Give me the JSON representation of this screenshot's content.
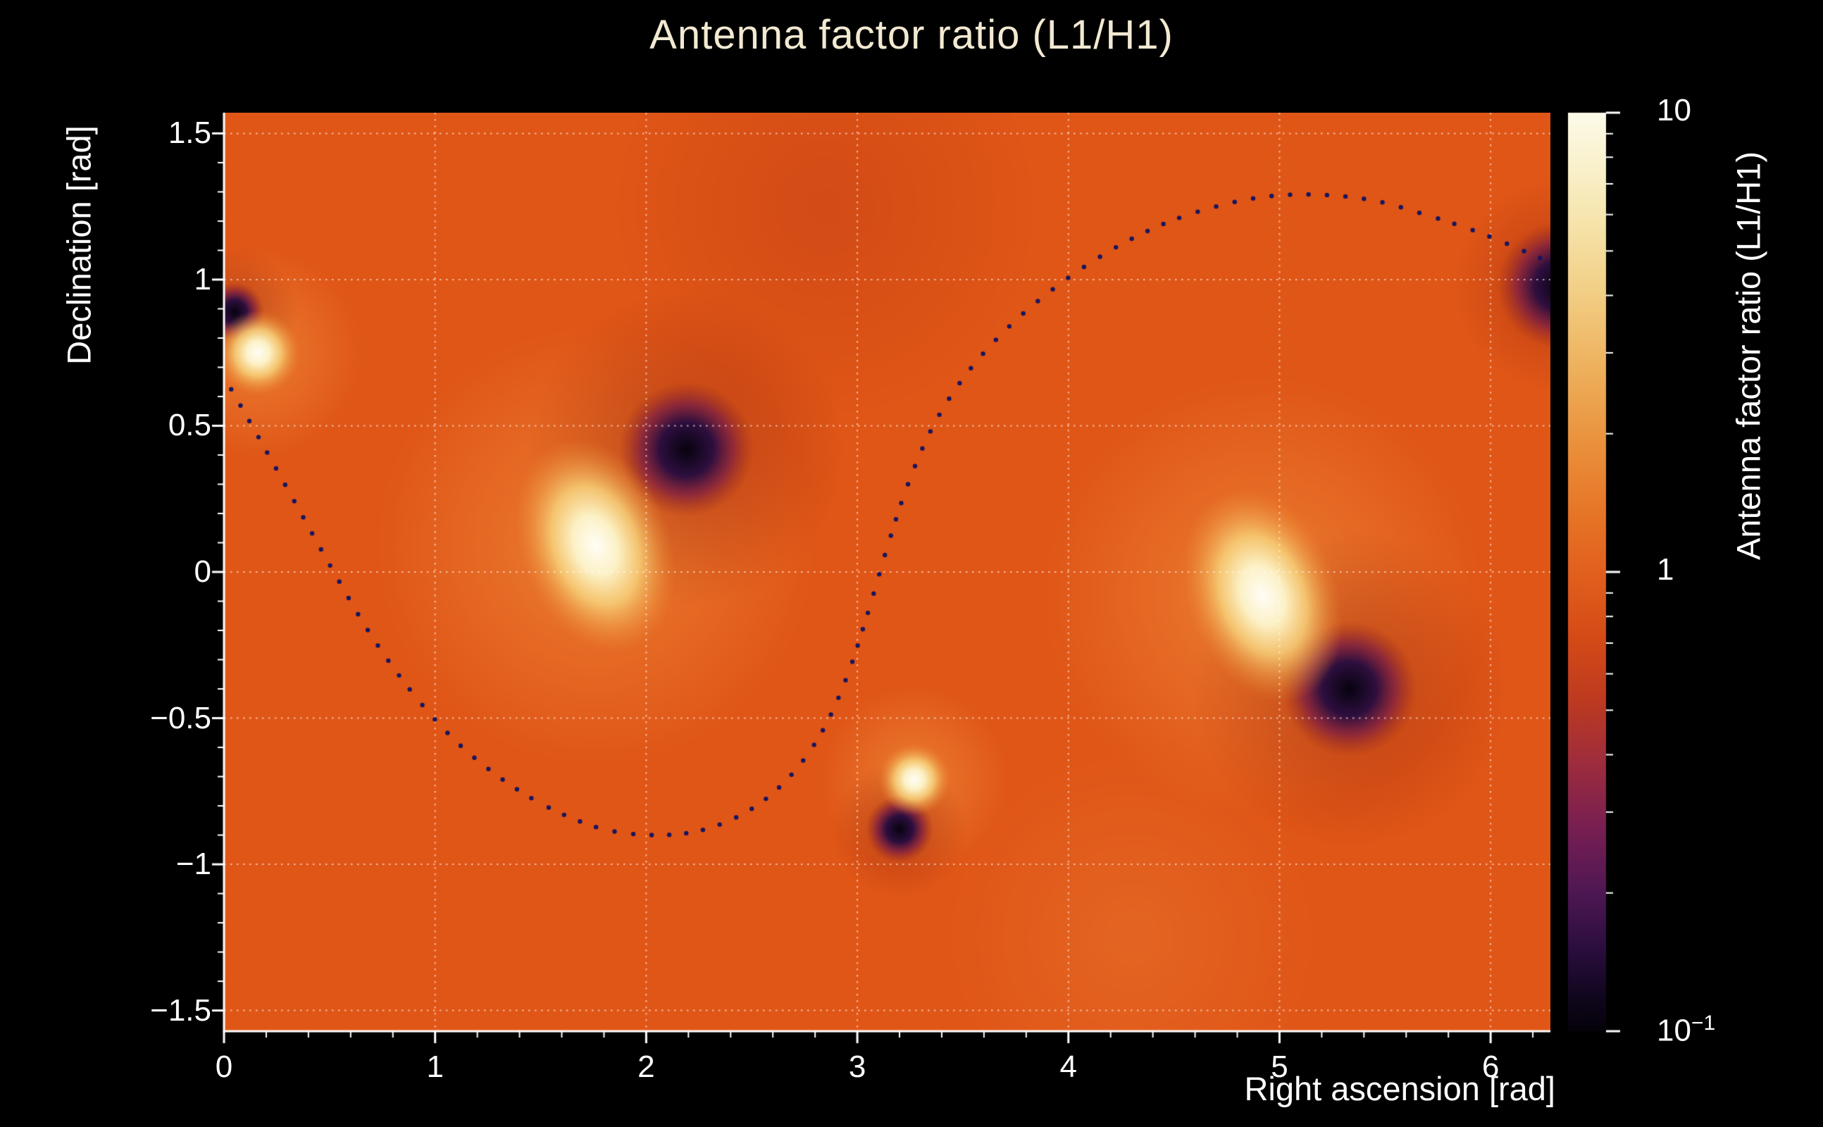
{
  "page": {
    "background": "#000000"
  },
  "chart_data": {
    "type": "heatmap",
    "title": "Antenna factor ratio (L1/H1)",
    "xlabel": "Right ascension [rad]",
    "ylabel": "Declination [rad]",
    "colorbar_label": "Antenna factor ratio (L1/H1)",
    "x_range": [
      0,
      6.2832
    ],
    "y_range": [
      -1.5708,
      1.5708
    ],
    "z_range": [
      0.1,
      10
    ],
    "z_scale": "log",
    "grid": true,
    "x_ticks": [
      {
        "v": 0,
        "label": "0"
      },
      {
        "v": 1,
        "label": "1"
      },
      {
        "v": 2,
        "label": "2"
      },
      {
        "v": 3,
        "label": "3"
      },
      {
        "v": 4,
        "label": "4"
      },
      {
        "v": 5,
        "label": "5"
      },
      {
        "v": 6,
        "label": "6"
      }
    ],
    "x_minor_step": 0.2,
    "y_ticks": [
      {
        "v": 1.5,
        "label": "1.5"
      },
      {
        "v": 1,
        "label": "1"
      },
      {
        "v": 0.5,
        "label": "0.5"
      },
      {
        "v": 0,
        "label": "0"
      },
      {
        "v": -0.5,
        "label": "−0.5"
      },
      {
        "v": -1,
        "label": "−1"
      },
      {
        "v": -1.5,
        "label": "−1.5"
      }
    ],
    "y_minor_step": 0.1,
    "grid_lines": {
      "x": [
        1,
        2,
        3,
        4,
        5,
        6
      ],
      "y": [
        -1.5,
        -1,
        -0.5,
        0,
        0.5,
        1,
        1.5
      ]
    },
    "base_value": 0.9,
    "features": {
      "maxima": [
        {
          "ra": 1.76,
          "dec": 0.09,
          "peak": 10,
          "core_r": 0.125,
          "halo_r": 0.42,
          "glow_r": 1.05,
          "sx": 0.85,
          "sy": 1.25,
          "rot": -20
        },
        {
          "ra": 4.92,
          "dec": -0.08,
          "peak": 10,
          "core_r": 0.125,
          "halo_r": 0.42,
          "glow_r": 1.05,
          "sx": 0.85,
          "sy": 1.25,
          "rot": -20
        },
        {
          "ra": 3.27,
          "dec": -0.71,
          "peak": 6,
          "core_r": 0.05,
          "halo_r": 0.17,
          "glow_r": 0.45,
          "sx": 1,
          "sy": 1,
          "rot": 0
        },
        {
          "ra": 0.16,
          "dec": 0.75,
          "peak": 6,
          "core_r": 0.06,
          "halo_r": 0.2,
          "glow_r": 0.5,
          "sx": 1,
          "sy": 1,
          "rot": 0
        }
      ],
      "minima": [
        {
          "ra": 2.19,
          "dec": 0.42,
          "peak": 0.1,
          "core_r": 0.1,
          "halo_r": 0.32,
          "shade_r": 0.75
        },
        {
          "ra": 5.33,
          "dec": -0.4,
          "peak": 0.1,
          "core_r": 0.1,
          "halo_r": 0.32,
          "shade_r": 0.75
        },
        {
          "ra": 3.2,
          "dec": -0.88,
          "peak": 0.15,
          "core_r": 0.05,
          "halo_r": 0.16,
          "shade_r": 0.32
        },
        {
          "ra": 0.05,
          "dec": 0.89,
          "peak": 0.15,
          "core_r": 0.05,
          "halo_r": 0.14,
          "shade_r": 0.3
        },
        {
          "ra": 6.33,
          "dec": 0.98,
          "peak": 0.2,
          "core_r": 0.07,
          "halo_r": 0.3,
          "shade_r": 0.5
        }
      ],
      "tint_regions": [
        {
          "ra": 2.85,
          "dec": 1.25,
          "r": 1.0,
          "kind": "dark",
          "alpha": 0.3
        },
        {
          "ra": 4.3,
          "dec": -1.25,
          "r": 0.9,
          "kind": "light",
          "alpha": 0.18
        }
      ]
    },
    "overlay_curve": {
      "description": "dotted sky track",
      "points": [
        [
          0.03,
          0.63
        ],
        [
          0.18,
          0.44
        ],
        [
          0.35,
          0.22
        ],
        [
          0.52,
          0.0
        ],
        [
          0.7,
          -0.22
        ],
        [
          0.9,
          -0.42
        ],
        [
          1.1,
          -0.58
        ],
        [
          1.32,
          -0.71
        ],
        [
          1.55,
          -0.81
        ],
        [
          1.8,
          -0.88
        ],
        [
          2.05,
          -0.9
        ],
        [
          2.28,
          -0.88
        ],
        [
          2.5,
          -0.81
        ],
        [
          2.68,
          -0.7
        ],
        [
          2.83,
          -0.55
        ],
        [
          2.95,
          -0.36
        ],
        [
          3.05,
          -0.14
        ],
        [
          3.14,
          0.08
        ],
        [
          3.24,
          0.3
        ],
        [
          3.36,
          0.5
        ],
        [
          3.52,
          0.68
        ],
        [
          3.72,
          0.84
        ],
        [
          3.95,
          0.98
        ],
        [
          4.2,
          1.1
        ],
        [
          4.45,
          1.19
        ],
        [
          4.7,
          1.25
        ],
        [
          4.95,
          1.285
        ],
        [
          5.2,
          1.29
        ],
        [
          5.45,
          1.27
        ],
        [
          5.7,
          1.22
        ],
        [
          5.95,
          1.16
        ],
        [
          6.15,
          1.1
        ],
        [
          6.28,
          1.06
        ]
      ]
    },
    "colorbar": {
      "min": 0.1,
      "max": 10,
      "scale": "log",
      "ticks": [
        {
          "v": 10,
          "label": "10"
        },
        {
          "v": 1,
          "label": "1"
        },
        {
          "v": 0.1,
          "label": "10",
          "sup": "−1"
        }
      ],
      "minor_ticks": [
        0.2,
        0.3,
        0.4,
        0.5,
        0.6,
        0.7,
        0.8,
        0.9,
        2,
        3,
        4,
        5,
        6,
        7,
        8,
        9
      ]
    }
  },
  "style": {
    "background": "#000000",
    "title_color": "#f2e9d2",
    "text_color": "#ffffff",
    "axis_color": "#ffffff",
    "grid_color": "rgba(255,255,255,0.6)",
    "base_color": "#e05617",
    "curve_color": "#17155f",
    "glow_color_inner": "rgba(246,170,80,0.55)",
    "glow_color_mid": "rgba(242,150,66,0.30)",
    "shade_color": "rgba(158,42,16,0.55)",
    "bright_core_stops": [
      [
        0,
        "#fffef7"
      ],
      [
        0.28,
        "#fcf1c6"
      ],
      [
        0.55,
        "rgba(248,210,122,0.85)"
      ],
      [
        1,
        "rgba(235,140,50,0)"
      ]
    ],
    "dark_core_stops": [
      [
        0,
        "#070310"
      ],
      [
        0.4,
        "#2e0f3f"
      ],
      [
        0.68,
        "rgba(128,32,66,0.8)"
      ],
      [
        1,
        "rgba(160,45,25,0)"
      ]
    ],
    "palette_stops": [
      [
        0.0,
        "#fdfbe9"
      ],
      [
        0.05,
        "#faf3d0"
      ],
      [
        0.12,
        "#f6e4ab"
      ],
      [
        0.2,
        "#f2cd83"
      ],
      [
        0.28,
        "#eeb05c"
      ],
      [
        0.36,
        "#ea913c"
      ],
      [
        0.44,
        "#e67426"
      ],
      [
        0.5,
        "#e2601e"
      ],
      [
        0.57,
        "#d54b17"
      ],
      [
        0.64,
        "#bd3a20"
      ],
      [
        0.71,
        "#9d2c3e"
      ],
      [
        0.78,
        "#771f52"
      ],
      [
        0.85,
        "#4e1754"
      ],
      [
        0.91,
        "#2b0e3e"
      ],
      [
        0.96,
        "#120720"
      ],
      [
        1.0,
        "#05020a"
      ]
    ]
  }
}
